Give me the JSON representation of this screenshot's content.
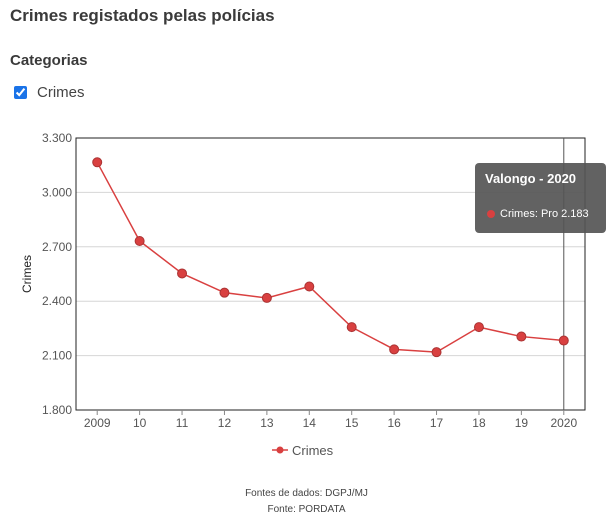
{
  "header": {
    "title": "Crimes registados pelas polícias"
  },
  "filters": {
    "heading": "Categorias",
    "items": [
      {
        "label": "Crimes",
        "checked": true
      }
    ]
  },
  "chart_data": {
    "type": "line",
    "x": [
      "2009",
      "10",
      "11",
      "12",
      "13",
      "14",
      "15",
      "16",
      "17",
      "18",
      "19",
      "2020"
    ],
    "series": [
      {
        "name": "Crimes",
        "values": [
          3166,
          2732,
          2553,
          2447,
          2418,
          2481,
          2257,
          2134,
          2119,
          2257,
          2205,
          2183
        ]
      }
    ],
    "title": "",
    "xlabel": "",
    "ylabel": "Crimes",
    "ylim": [
      1800,
      3300
    ],
    "yticks": [
      1800,
      2100,
      2400,
      2700,
      3000,
      3300
    ],
    "ytick_labels": [
      "1.800",
      "2.100",
      "2.400",
      "2.700",
      "3.000",
      "3.300"
    ],
    "grid": true,
    "legend": "bottom",
    "color": "#d94040",
    "highlight_index": 11
  },
  "tooltip": {
    "title": "Valongo - 2020",
    "line": "Crimes: Pro 2.183"
  },
  "footer": {
    "data_source": "Fontes de dados: DGPJ/MJ",
    "source": "Fonte: PORDATA"
  }
}
